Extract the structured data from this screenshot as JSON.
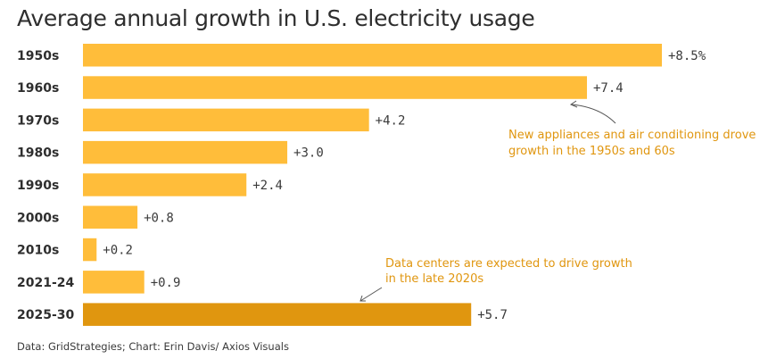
{
  "colors": {
    "bar": "#FFBD3A",
    "bar_highlight": "#E0960F",
    "annotation": "#E0960F",
    "text": "#2e2e2e"
  },
  "chart_data": {
    "type": "bar",
    "orientation": "horizontal",
    "title": "Average annual growth in U.S. electricity usage",
    "categories": [
      "1950s",
      "1960s",
      "1970s",
      "1980s",
      "1990s",
      "2000s",
      "2010s",
      "2021-24",
      "2025-30"
    ],
    "values": [
      8.5,
      7.4,
      4.2,
      3.0,
      2.4,
      0.8,
      0.2,
      0.9,
      5.7
    ],
    "value_labels": [
      "+8.5%",
      "+7.4",
      "+4.2",
      "+3.0",
      "+2.4",
      "+0.8",
      "+0.2",
      "+0.9",
      "+5.7"
    ],
    "highlighted_category": "2025-30",
    "xlim": [
      0,
      8.5
    ],
    "grid": false,
    "annotations": [
      {
        "text_lines": [
          "New appliances and air conditioning drove",
          "growth in the 1950s and 60s"
        ],
        "target": "1960s"
      },
      {
        "text_lines": [
          "Data centers are expected to drive growth",
          "in the late 2020s"
        ],
        "target": "2025-30"
      }
    ]
  },
  "source": "Data: GridStrategies; Chart: Erin Davis/ Axios Visuals"
}
